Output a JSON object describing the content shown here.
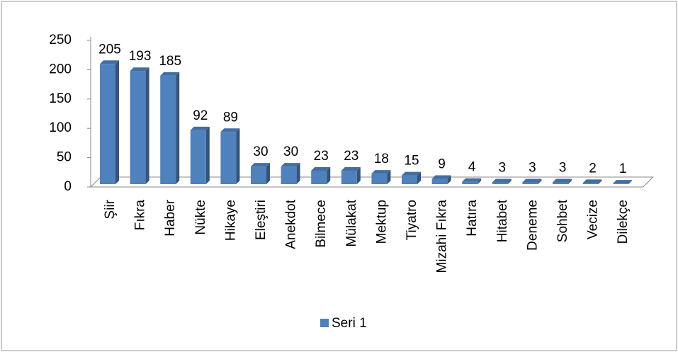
{
  "chart_data": {
    "type": "bar3d",
    "categories": [
      "Şiir",
      "Fıkra",
      "Haber",
      "Nükte",
      "Hikaye",
      "Eleştiri",
      "Anekdot",
      "Bilmece",
      "Mülakat",
      "Mektup",
      "Tiyatro",
      "Mizahi Fıkra",
      "Hatıra",
      "Hitabet",
      "Deneme",
      "Sohbet",
      "Vecize",
      "Dilekçe"
    ],
    "series": [
      {
        "name": "Seri 1",
        "color": "#4f81bd",
        "values": [
          205,
          193,
          185,
          92,
          89,
          30,
          30,
          23,
          23,
          18,
          15,
          9,
          4,
          3,
          3,
          3,
          2,
          1
        ]
      }
    ],
    "ylim": [
      0,
      250
    ],
    "yticks": [
      0,
      50,
      100,
      150,
      200,
      250
    ],
    "grid": false,
    "legend": "bottom"
  }
}
